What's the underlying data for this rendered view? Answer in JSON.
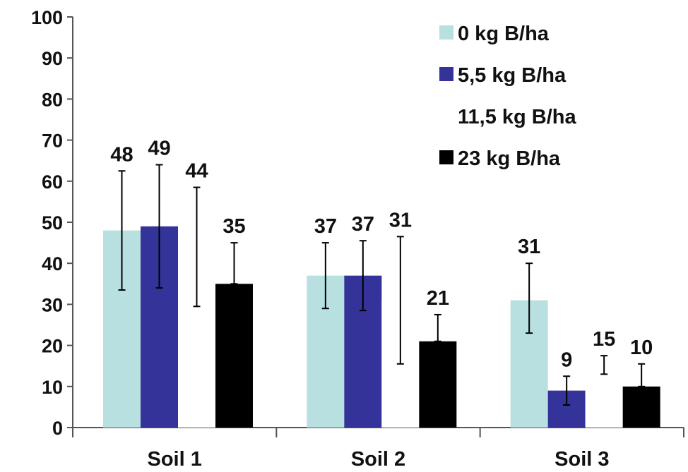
{
  "chart_data": {
    "type": "bar",
    "categories": [
      "Soil 1",
      "Soil 2",
      "Soil 3"
    ],
    "series": [
      {
        "name": "0 kg B/ha",
        "color": "#b8e0e0",
        "values": [
          48,
          37,
          31
        ],
        "error_low": [
          33.5,
          29,
          23
        ],
        "error_high": [
          62.5,
          45,
          40
        ]
      },
      {
        "name": "5,5 kg B/ha",
        "color": "#333399",
        "values": [
          49,
          37,
          9
        ],
        "error_low": [
          34,
          28.5,
          5.5
        ],
        "error_high": [
          64,
          45.5,
          12.5
        ]
      },
      {
        "name": "11,5 kg B/ha",
        "color": "#ffffff",
        "values": [
          44,
          31,
          15
        ],
        "error_low": [
          29.5,
          15.5,
          13
        ],
        "error_high": [
          58.5,
          46.5,
          17.5
        ]
      },
      {
        "name": "23 kg B/ha",
        "color": "#000000",
        "values": [
          35,
          21,
          10
        ],
        "error_low": [
          35,
          21,
          10
        ],
        "error_high": [
          45,
          27.5,
          15.5
        ]
      }
    ],
    "data_labels": [
      [
        "48",
        "37",
        "31"
      ],
      [
        "49",
        "37",
        "9"
      ],
      [
        "44",
        "31",
        "15"
      ],
      [
        "35",
        "21",
        "10"
      ]
    ],
    "y_ticks": [
      "0",
      "10",
      "20",
      "30",
      "40",
      "50",
      "60",
      "70",
      "80",
      "90",
      "100"
    ],
    "ylim": [
      0,
      100
    ],
    "title": "",
    "xlabel": "",
    "ylabel": "",
    "grid": false,
    "legend_position": "top-right"
  }
}
